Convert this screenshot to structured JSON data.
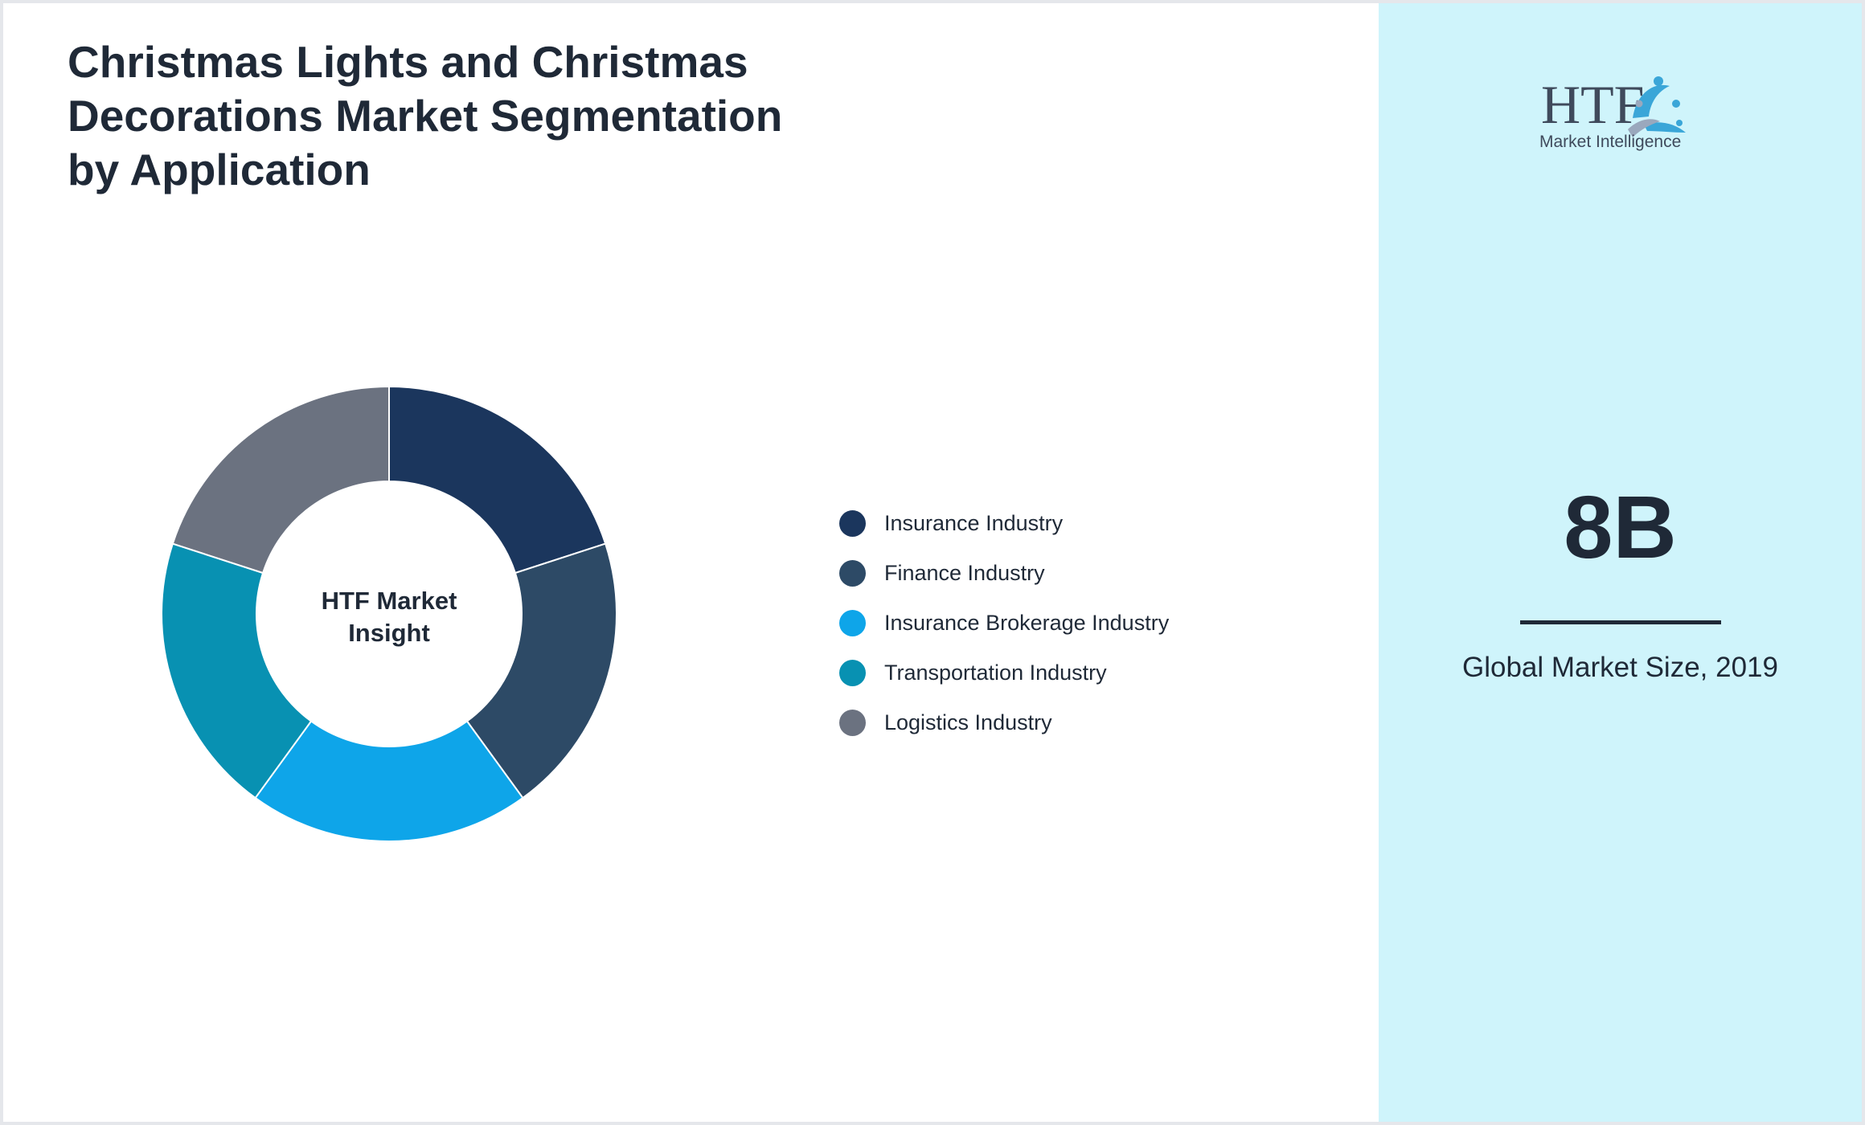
{
  "title": "Christmas Lights and Christmas Decorations Market Segmentation by Application",
  "center_label": [
    "HTF Market",
    "Insight"
  ],
  "colors": {
    "insurance": "#1b365d",
    "finance": "#2d4a66",
    "brokerage": "#0ea5e9",
    "transportation": "#0891b2",
    "logistics": "#6b7280",
    "panel_background": "#cff4fb",
    "text": "#1f2937"
  },
  "chart_data": {
    "type": "pie",
    "donut": true,
    "legend_position": "right",
    "categories": [
      "Insurance Industry",
      "Finance Industry",
      "Insurance Brokerage Industry",
      "Transportation Industry",
      "Logistics Industry"
    ],
    "values": [
      20,
      20,
      20,
      20,
      20
    ],
    "colors": [
      "#1b365d",
      "#2d4a66",
      "#0ea5e9",
      "#0891b2",
      "#6b7280"
    ]
  },
  "logo": {
    "mark": "HTF",
    "tagline": "Market Intelligence",
    "icon": "htf-figures-logo-icon"
  },
  "kpi": {
    "value": "8B",
    "caption": "Global Market Size, 2019"
  }
}
